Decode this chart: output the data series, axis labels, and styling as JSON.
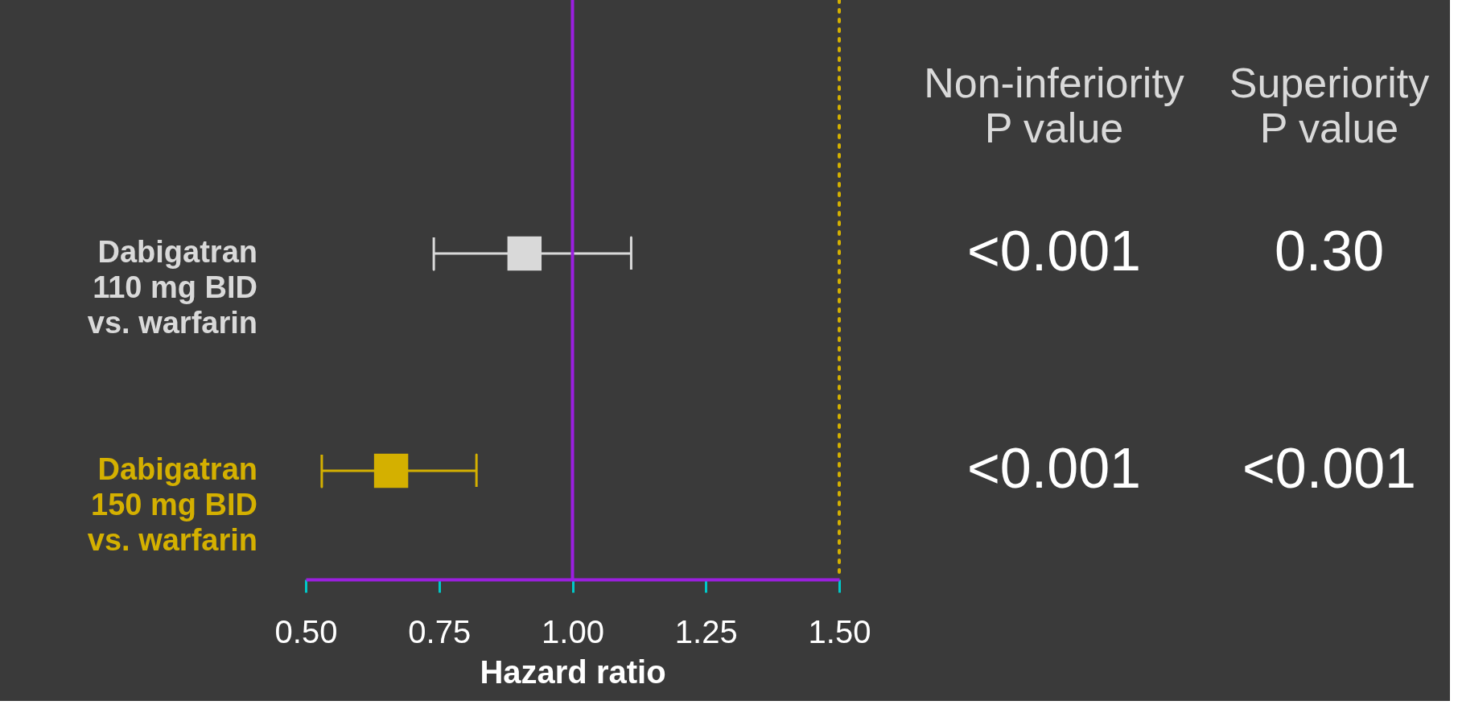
{
  "chart_data": {
    "type": "scatter",
    "orientation": "horizontal",
    "xlabel": "Hazard ratio",
    "categories": [
      "Dabigatran\n110 mg BID\nvs. warfarin",
      "Dabigatran\n150 mg BID\nvs. warfarin"
    ],
    "values": [
      0.91,
      0.66
    ],
    "errors": [
      [
        0.74,
        1.11
      ],
      [
        0.53,
        0.82
      ]
    ],
    "colors": [
      "#d9d9d9",
      "#d4b000"
    ],
    "marker": "square",
    "xlim": [
      0.5,
      1.5
    ],
    "xticks": [
      {
        "value": 0.5,
        "label": "0.50"
      },
      {
        "value": 0.75,
        "label": "0.75"
      },
      {
        "value": 1.0,
        "label": "1.00"
      },
      {
        "value": 1.25,
        "label": "1.25"
      },
      {
        "value": 1.5,
        "label": "1.50"
      }
    ],
    "ref_lines": [
      {
        "axis": "x",
        "value": 1.0,
        "color": "#9b1fe0",
        "line_style": "solid"
      },
      {
        "axis": "x",
        "value": 1.5,
        "color": "#d4b000",
        "line_style": "dotted"
      }
    ],
    "annotations": [
      "Non-inferiority\nP value",
      "Superiority\nP value",
      "<0.001",
      "0.30",
      "<0.001",
      "<0.001"
    ]
  }
}
